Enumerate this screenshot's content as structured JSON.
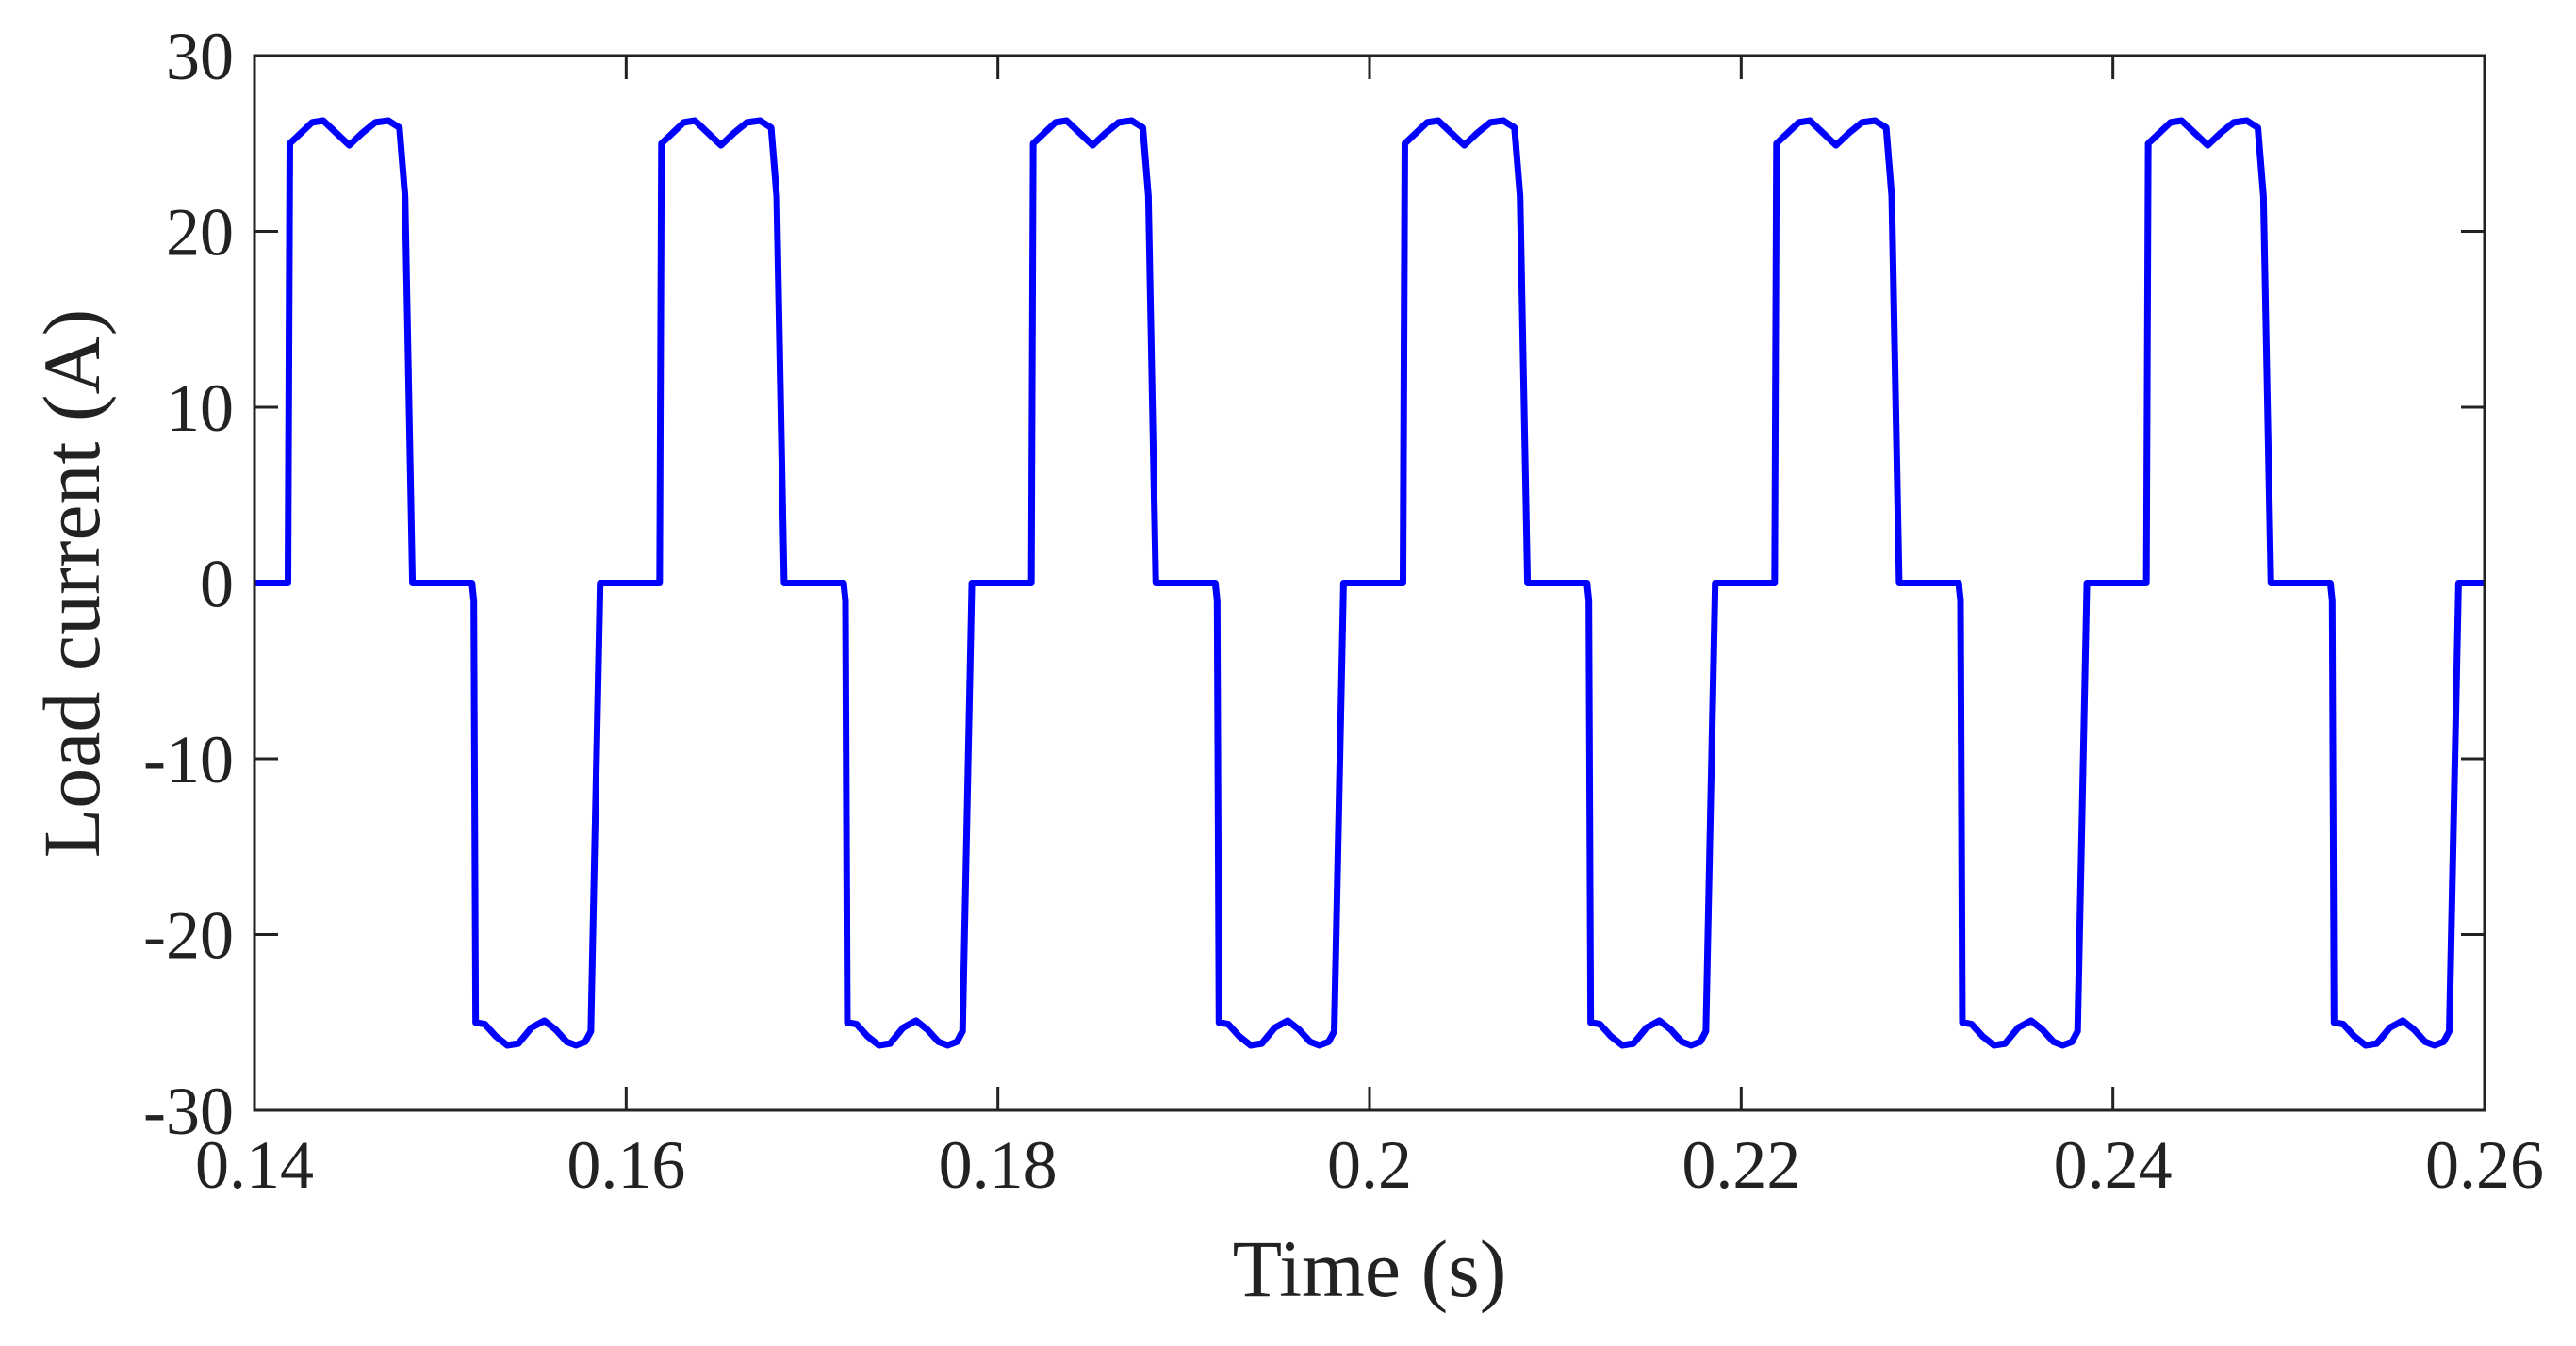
{
  "chart_data": {
    "type": "line",
    "xlabel": "Time (s)",
    "ylabel": "Load current (A)",
    "xlim": [
      0.14,
      0.26
    ],
    "ylim": [
      -30,
      30
    ],
    "xticks": [
      0.14,
      0.16,
      0.18,
      0.2,
      0.22,
      0.24,
      0.26
    ],
    "yticks": [
      -30,
      -20,
      -10,
      0,
      10,
      20,
      30
    ],
    "grid": false,
    "x": [
      0.14,
      0.1418,
      0.1419,
      0.1425,
      0.1431,
      0.1437,
      0.1444,
      0.1451,
      0.1458,
      0.1465,
      0.1472,
      0.1478,
      0.1481,
      0.1485,
      0.1517,
      0.1518,
      0.1519,
      0.1524,
      0.153,
      0.1536,
      0.1542,
      0.1549,
      0.1556,
      0.1562,
      0.1568,
      0.1573,
      0.1578,
      0.1581,
      0.1586,
      0.1618,
      0.1619,
      0.1625,
      0.1631,
      0.1637,
      0.1644,
      0.1651,
      0.1658,
      0.1665,
      0.1672,
      0.1678,
      0.1681,
      0.1685,
      0.1717,
      0.1718,
      0.1719,
      0.1724,
      0.173,
      0.1736,
      0.1742,
      0.1749,
      0.1756,
      0.1762,
      0.1768,
      0.1773,
      0.1778,
      0.1781,
      0.1786,
      0.1818,
      0.1819,
      0.1825,
      0.1831,
      0.1837,
      0.1844,
      0.1851,
      0.1858,
      0.1865,
      0.1872,
      0.1878,
      0.1881,
      0.1885,
      0.1917,
      0.1918,
      0.1919,
      0.1924,
      0.193,
      0.1936,
      0.1942,
      0.1949,
      0.1956,
      0.1962,
      0.1968,
      0.1973,
      0.1978,
      0.1981,
      0.1986,
      0.2018,
      0.2019,
      0.2025,
      0.2031,
      0.2037,
      0.2044,
      0.2051,
      0.2058,
      0.2065,
      0.2072,
      0.2078,
      0.2081,
      0.2085,
      0.2117,
      0.2118,
      0.2119,
      0.2124,
      0.213,
      0.2136,
      0.2142,
      0.2149,
      0.2156,
      0.2162,
      0.2168,
      0.2173,
      0.2178,
      0.2181,
      0.2186,
      0.2218,
      0.2219,
      0.2225,
      0.2231,
      0.2237,
      0.2244,
      0.2251,
      0.2258,
      0.2265,
      0.2272,
      0.2278,
      0.2281,
      0.2285,
      0.2317,
      0.2318,
      0.2319,
      0.2324,
      0.233,
      0.2336,
      0.2342,
      0.2349,
      0.2356,
      0.2362,
      0.2368,
      0.2373,
      0.2378,
      0.2381,
      0.2386,
      0.2418,
      0.2419,
      0.2425,
      0.2431,
      0.2437,
      0.2444,
      0.2451,
      0.2458,
      0.2465,
      0.2472,
      0.2478,
      0.2481,
      0.2485,
      0.2517,
      0.2518,
      0.2519,
      0.2524,
      0.253,
      0.2536,
      0.2542,
      0.2549,
      0.2556,
      0.2562,
      0.2568,
      0.2573,
      0.2578,
      0.2581,
      0.2586,
      0.26
    ],
    "series": [
      {
        "color": "#0000ff",
        "values": [
          0,
          0,
          25,
          25.6,
          26.2,
          26.3,
          25.6,
          24.9,
          25.6,
          26.2,
          26.3,
          25.9,
          22,
          0,
          0,
          -1,
          -25,
          -25.1,
          -25.8,
          -26.3,
          -26.2,
          -25.3,
          -24.9,
          -25.4,
          -26.1,
          -26.3,
          -26.1,
          -25.5,
          0,
          0,
          25,
          25.6,
          26.2,
          26.3,
          25.6,
          24.9,
          25.6,
          26.2,
          26.3,
          25.9,
          22,
          0,
          0,
          -1,
          -25,
          -25.1,
          -25.8,
          -26.3,
          -26.2,
          -25.3,
          -24.9,
          -25.4,
          -26.1,
          -26.3,
          -26.1,
          -25.5,
          0,
          0,
          25,
          25.6,
          26.2,
          26.3,
          25.6,
          24.9,
          25.6,
          26.2,
          26.3,
          25.9,
          22,
          0,
          0,
          -1,
          -25,
          -25.1,
          -25.8,
          -26.3,
          -26.2,
          -25.3,
          -24.9,
          -25.4,
          -26.1,
          -26.3,
          -26.1,
          -25.5,
          0,
          0,
          25,
          25.6,
          26.2,
          26.3,
          25.6,
          24.9,
          25.6,
          26.2,
          26.3,
          25.9,
          22,
          0,
          0,
          -1,
          -25,
          -25.1,
          -25.8,
          -26.3,
          -26.2,
          -25.3,
          -24.9,
          -25.4,
          -26.1,
          -26.3,
          -26.1,
          -25.5,
          0,
          0,
          25,
          25.6,
          26.2,
          26.3,
          25.6,
          24.9,
          25.6,
          26.2,
          26.3,
          25.9,
          22,
          0,
          0,
          -1,
          -25,
          -25.1,
          -25.8,
          -26.3,
          -26.2,
          -25.3,
          -24.9,
          -25.4,
          -26.1,
          -26.3,
          -26.1,
          -25.5,
          0,
          0,
          25,
          25.6,
          26.2,
          26.3,
          25.6,
          24.9,
          25.6,
          26.2,
          26.3,
          25.9,
          22,
          0,
          0,
          -1,
          -25,
          -25.1,
          -25.8,
          -26.3,
          -26.2,
          -25.3,
          -24.9,
          -25.4,
          -26.1,
          -26.3,
          -26.1,
          -25.5,
          0,
          0
        ]
      }
    ]
  }
}
